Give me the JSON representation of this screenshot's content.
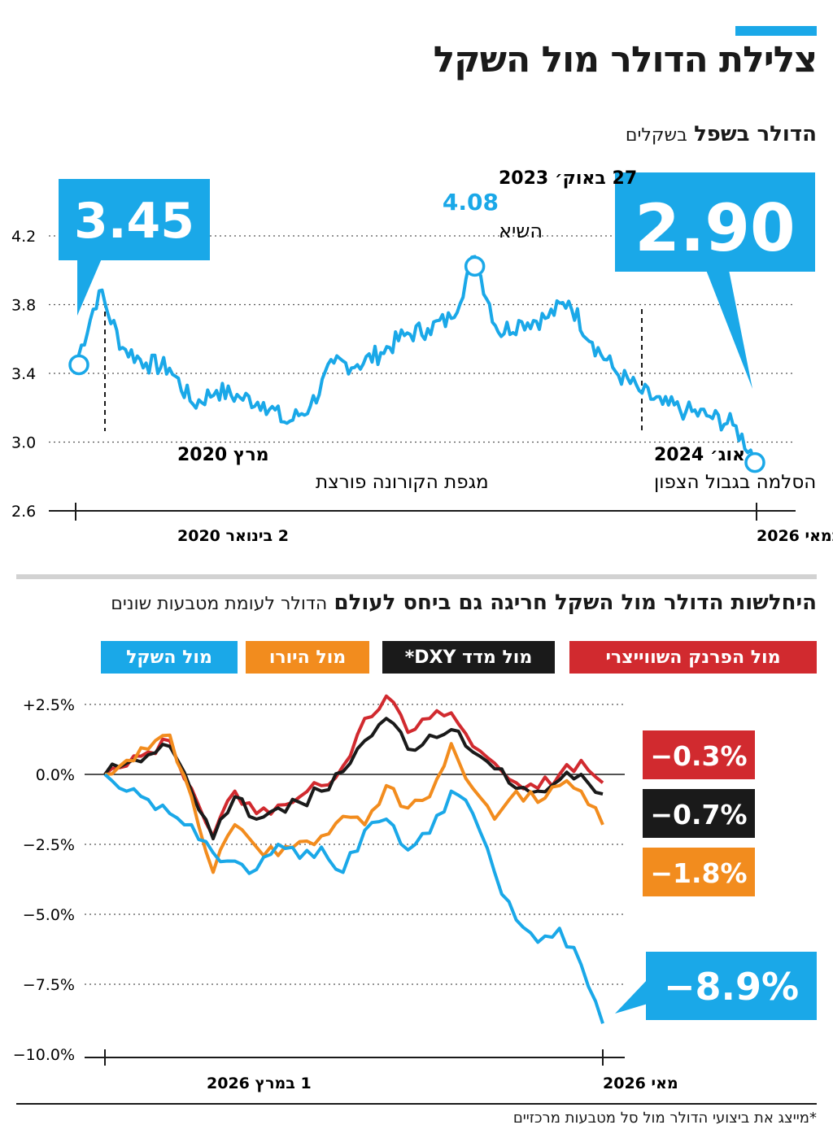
{
  "title": "צלילת הדולר מול השקל",
  "colors": {
    "accent": "#1aa8e8",
    "red": "#d12a2f",
    "black": "#1a1a1a",
    "orange": "#f28c1e",
    "blue": "#1aa8e8"
  },
  "chart1": {
    "subtitle_bold": "הדולר בשפל",
    "subtitle_light": "בשקלים",
    "callout_left": "3.45",
    "callout_right": "2.90",
    "peak_date": "27 באוק׳ 2023",
    "peak_value": "4.08",
    "peak_label": "השיא",
    "event_left_title": "מרץ 2020",
    "event_left_text": "מגפת הקורונה פורצת",
    "event_right_title": "אוג׳ 2024",
    "event_right_text": "הסלמה בגבול הצפון",
    "x_start_label": "2 בינואר 2020",
    "x_end_label": "5 במאי 2026"
  },
  "chart2": {
    "subtitle_bold": "היחלשות הדולר מול השקל חריגה גם ביחס לעולם",
    "subtitle_light": "הדולר לעומת מטבעות שונים",
    "legend": [
      "מול הפרנק השווייצרי",
      "מול מדד DXY*",
      "מול היורו",
      "מול השקל"
    ],
    "end_labels": [
      "−0.3%",
      "−0.7%",
      "−1.8%",
      "−8.9%"
    ],
    "x_start_label": "1 במרץ 2026",
    "x_end_label": "מאי 2026"
  },
  "footnote": "*מייצג את ביצועי הדולר מול סל מטבעות מרכזיים",
  "chart_data": [
    {
      "type": "line",
      "ylim": [
        2.6,
        4.4
      ],
      "yticks": [
        "4.2",
        "3.8",
        "3.4",
        "3.0",
        "2.6"
      ],
      "ytick_values": [
        4.2,
        3.8,
        3.4,
        3.0,
        2.6
      ],
      "x": [
        "2020-01",
        "2020-03",
        "2020-04",
        "2020-06",
        "2020-09",
        "2020-12",
        "2021-03",
        "2021-06",
        "2021-09",
        "2021-12",
        "2022-03",
        "2022-06",
        "2022-09",
        "2022-12",
        "2023-03",
        "2023-06",
        "2023-09",
        "2023-10",
        "2023-12",
        "2024-03",
        "2024-06",
        "2024-08",
        "2024-10",
        "2024-12",
        "2025-03",
        "2025-06",
        "2025-09",
        "2025-12",
        "2026-03",
        "2026-05"
      ],
      "series": [
        {
          "values": [
            3.45,
            3.88,
            3.55,
            3.46,
            3.43,
            3.22,
            3.3,
            3.26,
            3.23,
            3.11,
            3.21,
            3.46,
            3.45,
            3.52,
            3.62,
            3.66,
            3.72,
            4.08,
            3.64,
            3.7,
            3.72,
            3.82,
            3.58,
            3.41,
            3.3,
            3.22,
            3.18,
            3.15,
            3.1,
            2.9
          ]
        }
      ]
    },
    {
      "type": "line",
      "ylim": [
        -10.0,
        3.0
      ],
      "yticks": [
        "+2.5%",
        "0.0%",
        "−2.5%",
        "−5.0%",
        "−7.5%",
        "−10.0%"
      ],
      "ytick_values": [
        2.5,
        0,
        -2.5,
        -5,
        -7.5,
        -10
      ],
      "series": [
        {
          "name": "מול הפרנק השווייצרי",
          "color": "#d12a2f",
          "values": [
            0,
            0.3,
            0.8,
            1.2,
            -0.5,
            -2.2,
            -0.6,
            -1.4,
            -1.1,
            -0.8,
            -0.4,
            0.3,
            2.0,
            2.8,
            1.5,
            2.0,
            2.2,
            1.0,
            0.4,
            -0.3,
            -0.5,
            0.0,
            0.5,
            -0.3
          ]
        },
        {
          "name": "מול מדד DXY*",
          "color": "#1a1a1a",
          "values": [
            0,
            0.4,
            0.7,
            1.0,
            -0.6,
            -2.3,
            -0.8,
            -1.6,
            -1.2,
            -1.0,
            -0.6,
            0.1,
            1.2,
            2.0,
            0.9,
            1.4,
            1.6,
            0.8,
            0.2,
            -0.5,
            -0.6,
            -0.2,
            0.0,
            -0.7
          ]
        },
        {
          "name": "מול היורו",
          "color": "#f28c1e",
          "values": [
            0,
            0.5,
            0.9,
            1.4,
            -0.8,
            -3.5,
            -1.8,
            -2.6,
            -2.9,
            -2.4,
            -2.2,
            -1.5,
            -1.8,
            -0.4,
            -1.2,
            -0.8,
            1.1,
            -0.5,
            -1.6,
            -0.6,
            -1.0,
            -0.4,
            -0.6,
            -1.8
          ]
        },
        {
          "name": "מול השקל",
          "color": "#1aa8e8",
          "values": [
            0,
            -0.6,
            -0.9,
            -1.4,
            -1.8,
            -2.8,
            -3.1,
            -3.4,
            -2.5,
            -3.0,
            -2.6,
            -3.5,
            -2.0,
            -1.6,
            -2.7,
            -2.1,
            -0.6,
            -1.4,
            -3.5,
            -5.2,
            -6.0,
            -5.5,
            -6.8,
            -8.9
          ]
        }
      ]
    }
  ]
}
